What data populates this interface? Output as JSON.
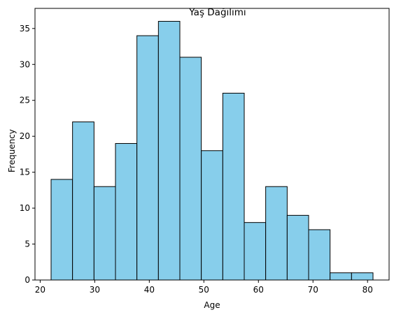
{
  "chart_data": {
    "type": "bar",
    "title": "Yaş Dağılımı",
    "xlabel": "Age",
    "ylabel": "Frequency",
    "bin_edges": [
      22,
      25.93,
      29.87,
      33.8,
      37.73,
      41.67,
      45.6,
      49.53,
      53.47,
      57.4,
      61.33,
      65.27,
      69.2,
      73.13,
      77.07,
      81
    ],
    "values": [
      14,
      22,
      13,
      19,
      34,
      36,
      31,
      18,
      26,
      8,
      13,
      9,
      7,
      1,
      1
    ],
    "xlim": [
      19.05,
      83.95
    ],
    "ylim": [
      0,
      37.8
    ],
    "xticks": [
      20,
      30,
      40,
      50,
      60,
      70,
      80
    ],
    "yticks": [
      0,
      5,
      10,
      15,
      20,
      25,
      30,
      35
    ],
    "xtick_labels": [
      "20",
      "30",
      "40",
      "50",
      "60",
      "70",
      "80"
    ],
    "ytick_labels": [
      "0",
      "5",
      "10",
      "15",
      "20",
      "25",
      "30",
      "35"
    ],
    "grid": false,
    "bar_color": "#87ceeb",
    "edge_color": "#000000"
  }
}
